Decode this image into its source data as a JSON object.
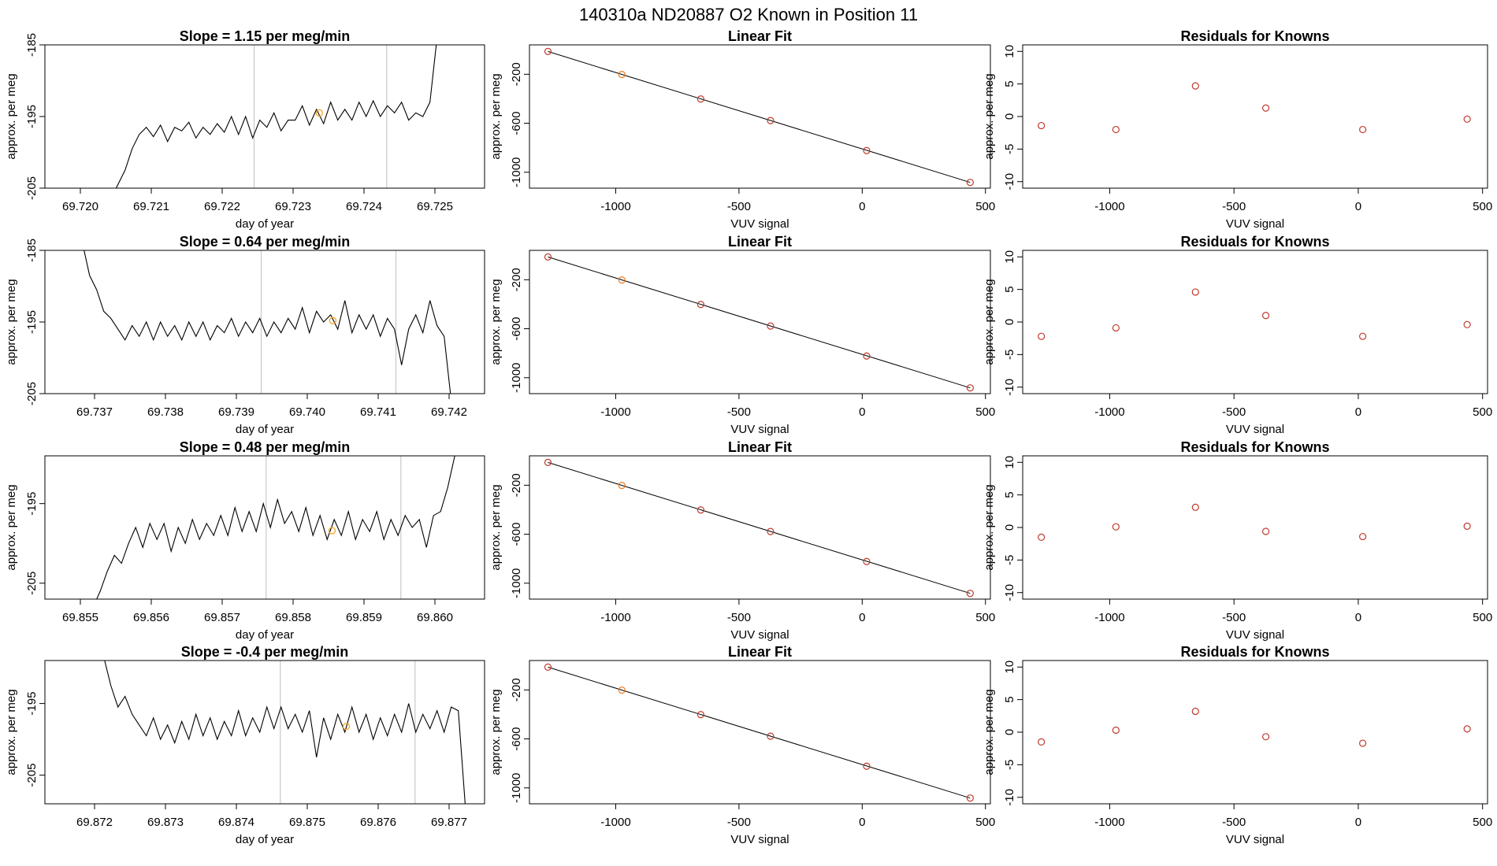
{
  "figure_title": "140310a      ND20887    O2 Known in Position  11",
  "chart_data": [
    {
      "type": "line",
      "title": "Slope =  1.15  per meg/min",
      "xlabel": "day of year",
      "ylabel": "approx. per meg",
      "xlim": [
        69.7195,
        69.7257
      ],
      "ylim": [
        -205,
        -185
      ],
      "xticks": [
        "69.720",
        "69.721",
        "69.722",
        "69.723",
        "69.724",
        "69.725"
      ],
      "yticks": [
        "-205",
        "-195",
        "-185"
      ],
      "x": [
        69.72043,
        69.72053,
        69.72063,
        69.72073,
        69.72083,
        69.72093,
        69.72103,
        69.72113,
        69.72123,
        69.72133,
        69.72143,
        69.72153,
        69.72163,
        69.72173,
        69.72183,
        69.72193,
        69.72203,
        69.72213,
        69.72223,
        69.72233,
        69.72243,
        69.72253,
        69.72263,
        69.72273,
        69.72283,
        69.72293,
        69.72303,
        69.72313,
        69.72323,
        69.72333,
        69.72343,
        69.72353,
        69.72363,
        69.72373,
        69.72383,
        69.72393,
        69.72403,
        69.72413,
        69.72423,
        69.72433,
        69.72443,
        69.72453,
        69.72463,
        69.72473,
        69.72483,
        69.72493,
        69.72503
      ],
      "y": [
        -206.5,
        -204.5,
        -202.5,
        -199.5,
        -197.5,
        -196.5,
        -197.8,
        -196.2,
        -198.5,
        -196.5,
        -197.0,
        -195.8,
        -198.0,
        -196.5,
        -197.5,
        -196.0,
        -197.2,
        -195.0,
        -197.5,
        -195.0,
        -198.0,
        -195.5,
        -196.5,
        -194.5,
        -197.0,
        -195.5,
        -195.5,
        -193.5,
        -196.2,
        -194.0,
        -196.0,
        -193.0,
        -195.5,
        -194.0,
        -195.5,
        -193.0,
        -195.0,
        -192.8,
        -195.0,
        -193.5,
        -194.5,
        -193.0,
        -195.5,
        -194.5,
        -195.0,
        -193.0,
        -184.0
      ],
      "vlines": [
        69.72245,
        69.72432
      ],
      "marker": {
        "x": 69.72337,
        "y": -194.5,
        "color": "#f5a623"
      }
    },
    {
      "type": "scatter",
      "title": "Linear Fit",
      "xlabel": "VUV signal",
      "ylabel": "approx. per meg",
      "xlim": [
        -1350,
        520
      ],
      "ylim": [
        -1130,
        40
      ],
      "xticks": [
        "-1000",
        "-500",
        "0",
        "500"
      ],
      "yticks": [
        "-200",
        "-600",
        "-1000"
      ],
      "x": [
        -1275,
        -975,
        -655,
        -372,
        18,
        438
      ],
      "y": [
        -14,
        -202,
        -402,
        -578,
        -823,
        -1083
      ],
      "point_colors": [
        "#c0392b",
        "#e67e22",
        "#c0392b",
        "#c0392b",
        "#c0392b",
        "#c0392b"
      ],
      "fit_line": {
        "x": [
          -1275,
          438
        ],
        "y": [
          -14,
          -1083
        ]
      }
    },
    {
      "type": "scatter",
      "title": "Residuals for Knowns",
      "xlabel": "VUV signal",
      "ylabel": "approx. per meg",
      "xlim": [
        -1350,
        520
      ],
      "ylim": [
        -11,
        11
      ],
      "xticks": [
        "-1000",
        "-500",
        "0",
        "500"
      ],
      "yticks": [
        "-10",
        "-5",
        "0",
        "5",
        "10"
      ],
      "x": [
        -1275,
        -975,
        -655,
        -372,
        18,
        438
      ],
      "y": [
        -1.4,
        -2.0,
        4.7,
        1.3,
        -2.0,
        -0.4
      ],
      "color": "#c0392b"
    },
    {
      "type": "line",
      "title": "Slope =  0.64  per meg/min",
      "xlabel": "day of year",
      "ylabel": "approx. per meg",
      "xlim": [
        69.7363,
        69.7425
      ],
      "ylim": [
        -205,
        -185
      ],
      "xticks": [
        "69.737",
        "69.738",
        "69.739",
        "69.740",
        "69.741",
        "69.742"
      ],
      "yticks": [
        "-205",
        "-195",
        "-185"
      ],
      "x": [
        69.73683,
        69.73693,
        69.73703,
        69.73713,
        69.73723,
        69.73733,
        69.73743,
        69.73753,
        69.73763,
        69.73773,
        69.73783,
        69.73793,
        69.73803,
        69.73813,
        69.73823,
        69.73833,
        69.73843,
        69.73853,
        69.73863,
        69.73873,
        69.73883,
        69.73893,
        69.73903,
        69.73913,
        69.73923,
        69.73933,
        69.73943,
        69.73953,
        69.73963,
        69.73973,
        69.73983,
        69.73993,
        69.74003,
        69.74013,
        69.74023,
        69.74033,
        69.74043,
        69.74053,
        69.74063,
        69.74073,
        69.74083,
        69.74093,
        69.74103,
        69.74113,
        69.74123,
        69.74133,
        69.74143,
        69.74153,
        69.74163,
        69.74173,
        69.74183,
        69.74193,
        69.74203
      ],
      "y": [
        -184.0,
        -188.5,
        -190.5,
        -193.5,
        -194.5,
        -196.0,
        -197.5,
        -195.5,
        -197.0,
        -195.0,
        -197.5,
        -195.0,
        -197.0,
        -195.5,
        -197.5,
        -195.0,
        -197.0,
        -195.0,
        -197.5,
        -195.5,
        -196.5,
        -194.5,
        -197.0,
        -195.0,
        -196.5,
        -194.5,
        -197.0,
        -195.0,
        -196.5,
        -194.5,
        -196.0,
        -193.0,
        -196.5,
        -193.5,
        -195.0,
        -194.0,
        -196.0,
        -192.0,
        -196.5,
        -194.0,
        -196.0,
        -194.0,
        -197.0,
        -194.5,
        -196.0,
        -201.0,
        -196.0,
        -194.0,
        -196.5,
        -192.0,
        -195.5,
        -197.0,
        -206.0
      ],
      "vlines": [
        69.73935,
        69.74125
      ],
      "marker": {
        "x": 69.74036,
        "y": -194.8,
        "color": "#f5a623"
      }
    },
    {
      "type": "scatter",
      "title": "Linear Fit",
      "xlabel": "VUV signal",
      "ylabel": "approx. per meg",
      "xlim": [
        -1350,
        520
      ],
      "ylim": [
        -1130,
        40
      ],
      "xticks": [
        "-1000",
        "-500",
        "0",
        "500"
      ],
      "yticks": [
        "-200",
        "-600",
        "-1000"
      ],
      "x": [
        -1275,
        -975,
        -655,
        -372,
        18,
        438
      ],
      "y": [
        -14,
        -202,
        -402,
        -578,
        -823,
        -1083
      ],
      "point_colors": [
        "#c0392b",
        "#e67e22",
        "#c0392b",
        "#c0392b",
        "#c0392b",
        "#c0392b"
      ],
      "fit_line": {
        "x": [
          -1275,
          438
        ],
        "y": [
          -14,
          -1083
        ]
      }
    },
    {
      "type": "scatter",
      "title": "Residuals for Knowns",
      "xlabel": "VUV signal",
      "ylabel": "approx. per meg",
      "xlim": [
        -1350,
        520
      ],
      "ylim": [
        -11,
        11
      ],
      "xticks": [
        "-1000",
        "-500",
        "0",
        "500"
      ],
      "yticks": [
        "-10",
        "-5",
        "0",
        "5",
        "10"
      ],
      "x": [
        -1275,
        -975,
        -655,
        -372,
        18,
        438
      ],
      "y": [
        -2.2,
        -0.9,
        4.6,
        1.0,
        -2.2,
        -0.4
      ],
      "color": "#c0392b"
    },
    {
      "type": "line",
      "title": "Slope =  0.48  per meg/min",
      "xlabel": "day of year",
      "ylabel": "approx. per meg",
      "xlim": [
        69.8545,
        69.8607
      ],
      "ylim": [
        -207,
        -189
      ],
      "xticks": [
        "69.855",
        "69.856",
        "69.857",
        "69.858",
        "69.859",
        "69.860"
      ],
      "yticks": [
        "-205",
        "-195"
      ],
      "x": [
        69.85518,
        69.85528,
        69.85538,
        69.85548,
        69.85558,
        69.85568,
        69.85578,
        69.85588,
        69.85598,
        69.85608,
        69.85618,
        69.85628,
        69.85638,
        69.85648,
        69.85658,
        69.85668,
        69.85678,
        69.85688,
        69.85698,
        69.85708,
        69.85718,
        69.85728,
        69.85738,
        69.85748,
        69.85758,
        69.85768,
        69.85778,
        69.85788,
        69.85798,
        69.85808,
        69.85818,
        69.85828,
        69.85838,
        69.85848,
        69.85858,
        69.85868,
        69.85878,
        69.85888,
        69.85898,
        69.85908,
        69.85918,
        69.85928,
        69.85938,
        69.85948,
        69.85958,
        69.85968,
        69.85978,
        69.85988,
        69.85998,
        69.86008,
        69.86018,
        69.86028
      ],
      "y": [
        -208.0,
        -206.0,
        -203.5,
        -201.5,
        -202.5,
        -200.0,
        -198.0,
        -200.5,
        -197.5,
        -199.5,
        -197.5,
        -201.0,
        -198.0,
        -200.0,
        -197.0,
        -199.5,
        -197.5,
        -199.0,
        -196.5,
        -199.0,
        -195.5,
        -198.5,
        -196.0,
        -198.5,
        -195.0,
        -198.0,
        -194.5,
        -197.5,
        -196.0,
        -198.5,
        -195.5,
        -199.0,
        -196.5,
        -199.5,
        -197.0,
        -199.0,
        -196.0,
        -199.5,
        -197.0,
        -198.5,
        -196.0,
        -199.5,
        -197.0,
        -199.0,
        -196.5,
        -198.0,
        -197.0,
        -200.5,
        -196.5,
        -196.0,
        -193.0,
        -189.0
      ],
      "vlines": [
        69.85762,
        69.85952
      ],
      "marker": {
        "x": 69.85855,
        "y": -198.4,
        "color": "#f5a623"
      }
    },
    {
      "type": "scatter",
      "title": "Linear Fit",
      "xlabel": "VUV signal",
      "ylabel": "approx. per meg",
      "xlim": [
        -1350,
        520
      ],
      "ylim": [
        -1130,
        40
      ],
      "xticks": [
        "-1000",
        "-500",
        "0",
        "500"
      ],
      "yticks": [
        "-200",
        "-600",
        "-1000"
      ],
      "x": [
        -1275,
        -975,
        -655,
        -372,
        18,
        438
      ],
      "y": [
        -14,
        -202,
        -402,
        -578,
        -823,
        -1083
      ],
      "point_colors": [
        "#c0392b",
        "#e67e22",
        "#c0392b",
        "#c0392b",
        "#c0392b",
        "#c0392b"
      ],
      "fit_line": {
        "x": [
          -1275,
          438
        ],
        "y": [
          -14,
          -1083
        ]
      }
    },
    {
      "type": "scatter",
      "title": "Residuals for Knowns",
      "xlabel": "VUV signal",
      "ylabel": "approx. per meg",
      "xlim": [
        -1350,
        520
      ],
      "ylim": [
        -11,
        11
      ],
      "xticks": [
        "-1000",
        "-500",
        "0",
        "500"
      ],
      "yticks": [
        "-10",
        "-5",
        "0",
        "5",
        "10"
      ],
      "x": [
        -1275,
        -975,
        -655,
        -372,
        18,
        438
      ],
      "y": [
        -1.5,
        0.1,
        3.1,
        -0.6,
        -1.4,
        0.2
      ],
      "color": "#c0392b"
    },
    {
      "type": "line",
      "title": "Slope =  -0.4  per meg/min",
      "xlabel": "day of year",
      "ylabel": "approx. per meg",
      "xlim": [
        69.8713,
        69.8775
      ],
      "ylim": [
        -209,
        -189
      ],
      "xticks": [
        "69.872",
        "69.873",
        "69.874",
        "69.875",
        "69.876",
        "69.877"
      ],
      "yticks": [
        "-205",
        "-195"
      ],
      "x": [
        69.87213,
        69.87223,
        69.87233,
        69.87243,
        69.87253,
        69.87263,
        69.87273,
        69.87283,
        69.87293,
        69.87303,
        69.87313,
        69.87323,
        69.87333,
        69.87343,
        69.87353,
        69.87363,
        69.87373,
        69.87383,
        69.87393,
        69.87403,
        69.87413,
        69.87423,
        69.87433,
        69.87443,
        69.87453,
        69.87463,
        69.87473,
        69.87483,
        69.87493,
        69.87503,
        69.87513,
        69.87523,
        69.87533,
        69.87543,
        69.87553,
        69.87563,
        69.87573,
        69.87583,
        69.87593,
        69.87603,
        69.87613,
        69.87623,
        69.87633,
        69.87643,
        69.87653,
        69.87663,
        69.87673,
        69.87683,
        69.87693,
        69.87703,
        69.87713,
        69.87723
      ],
      "y": [
        -188.5,
        -192.5,
        -195.5,
        -194.0,
        -196.5,
        -198.0,
        -199.5,
        -197.0,
        -200.0,
        -198.0,
        -200.5,
        -197.5,
        -200.0,
        -196.5,
        -199.5,
        -197.0,
        -200.0,
        -197.5,
        -199.5,
        -196.0,
        -199.5,
        -197.0,
        -199.0,
        -195.5,
        -198.5,
        -195.5,
        -198.5,
        -196.5,
        -199.0,
        -196.0,
        -202.5,
        -197.0,
        -200.0,
        -196.5,
        -199.0,
        -195.5,
        -199.0,
        -196.5,
        -200.0,
        -197.0,
        -199.5,
        -196.5,
        -199.0,
        -195.0,
        -199.0,
        -196.5,
        -198.5,
        -196.0,
        -199.0,
        -195.5,
        -196.0,
        -209.5
      ],
      "vlines": [
        69.87462,
        69.87652
      ],
      "marker": {
        "x": 69.87555,
        "y": -198.2,
        "color": "#f5a623"
      }
    },
    {
      "type": "scatter",
      "title": "Linear Fit",
      "xlabel": "VUV signal",
      "ylabel": "approx. per meg",
      "xlim": [
        -1350,
        520
      ],
      "ylim": [
        -1130,
        40
      ],
      "xticks": [
        "-1000",
        "-500",
        "0",
        "500"
      ],
      "yticks": [
        "-200",
        "-600",
        "-1000"
      ],
      "x": [
        -1275,
        -975,
        -655,
        -372,
        18,
        438
      ],
      "y": [
        -14,
        -202,
        -402,
        -578,
        -823,
        -1083
      ],
      "point_colors": [
        "#c0392b",
        "#e67e22",
        "#c0392b",
        "#c0392b",
        "#c0392b",
        "#c0392b"
      ],
      "fit_line": {
        "x": [
          -1275,
          438
        ],
        "y": [
          -14,
          -1083
        ]
      }
    },
    {
      "type": "scatter",
      "title": "Residuals for Knowns",
      "xlabel": "VUV signal",
      "ylabel": "approx. per meg",
      "xlim": [
        -1350,
        520
      ],
      "ylim": [
        -11,
        11
      ],
      "xticks": [
        "-1000",
        "-500",
        "0",
        "500"
      ],
      "yticks": [
        "-10",
        "-5",
        "0",
        "5",
        "10"
      ],
      "x": [
        -1275,
        -975,
        -655,
        -372,
        18,
        438
      ],
      "y": [
        -1.5,
        0.3,
        3.2,
        -0.7,
        -1.7,
        0.5
      ],
      "color": "#c0392b"
    }
  ]
}
